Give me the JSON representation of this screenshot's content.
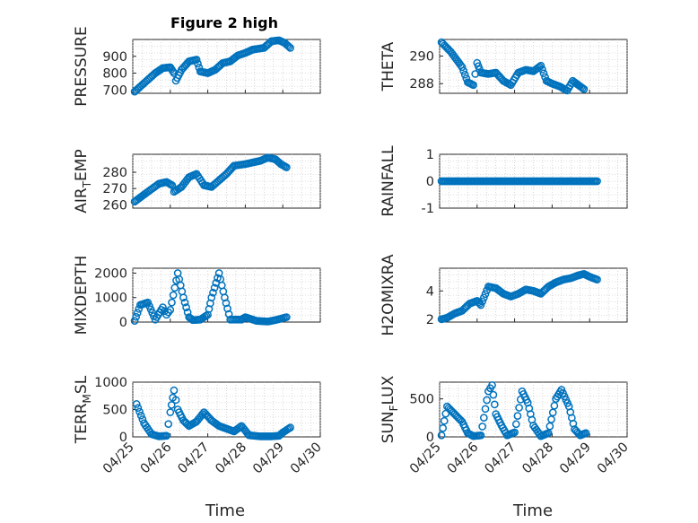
{
  "figure": {
    "title": "Figure 2 high",
    "marker_color": "#0072BD",
    "x_tick_labels": [
      "04/25",
      "04/26",
      "04/27",
      "04/28",
      "04/29",
      "04/30"
    ],
    "xlabel": "Time"
  },
  "chart_data": [
    {
      "type": "scatter",
      "name": "pressure",
      "title": "Figure 2 high",
      "ylabel_main": "PRESSURE",
      "ylabel_sub": "",
      "ylabel_rest": "",
      "ylim": [
        680,
        1000
      ],
      "yticks": [
        700,
        800,
        900
      ],
      "grid": true,
      "xlim_days": [
        0,
        5
      ],
      "xlabel": "",
      "x_ticks": [
        "04/25",
        "04/26",
        "04/27",
        "04/28",
        "04/29",
        "04/30"
      ],
      "anchors": [
        [
          0.05,
          690
        ],
        [
          0.4,
          760
        ],
        [
          0.6,
          800
        ],
        [
          0.8,
          830
        ],
        [
          1.0,
          835
        ],
        [
          1.1,
          800
        ],
        [
          1.15,
          755
        ],
        [
          1.3,
          820
        ],
        [
          1.5,
          870
        ],
        [
          1.7,
          880
        ],
        [
          1.8,
          810
        ],
        [
          2.0,
          800
        ],
        [
          2.2,
          820
        ],
        [
          2.4,
          860
        ],
        [
          2.6,
          870
        ],
        [
          2.8,
          905
        ],
        [
          3.0,
          920
        ],
        [
          3.2,
          940
        ],
        [
          3.5,
          950
        ],
        [
          3.7,
          990
        ],
        [
          3.9,
          995
        ],
        [
          4.05,
          980
        ],
        [
          4.2,
          950
        ]
      ]
    },
    {
      "type": "scatter",
      "name": "theta",
      "ylabel_main": "THETA",
      "ylabel_sub": "",
      "ylabel_rest": "",
      "ylim": [
        287.3,
        291.2
      ],
      "yticks": [
        288,
        290
      ],
      "grid": true,
      "xlim_days": [
        0,
        5
      ],
      "xlabel": "",
      "x_ticks": [
        "04/25",
        "04/26",
        "04/27",
        "04/28",
        "04/29",
        "04/30"
      ],
      "anchors": [
        [
          0.05,
          291
        ],
        [
          0.3,
          290.3
        ],
        [
          0.6,
          289.2
        ],
        [
          0.75,
          288.1
        ],
        [
          0.9,
          287.9
        ],
        [
          1.0,
          289.5
        ],
        [
          1.1,
          288.8
        ],
        [
          1.3,
          288.7
        ],
        [
          1.5,
          288.8
        ],
        [
          1.7,
          288.2
        ],
        [
          1.9,
          287.9
        ],
        [
          2.1,
          288.8
        ],
        [
          2.3,
          289.0
        ],
        [
          2.5,
          288.9
        ],
        [
          2.7,
          289.3
        ],
        [
          2.85,
          288.2
        ],
        [
          3.0,
          288.0
        ],
        [
          3.2,
          287.8
        ],
        [
          3.4,
          287.5
        ],
        [
          3.55,
          288.2
        ],
        [
          3.7,
          287.9
        ],
        [
          3.85,
          287.6
        ]
      ]
    },
    {
      "type": "scatter",
      "name": "air_temp",
      "ylabel_main": "AIR",
      "ylabel_sub": "T",
      "ylabel_rest": "EMP",
      "ylim": [
        258,
        291
      ],
      "yticks": [
        260,
        270,
        280
      ],
      "grid": true,
      "xlim_days": [
        0,
        5
      ],
      "xlabel": "",
      "x_ticks": [
        "04/25",
        "04/26",
        "04/27",
        "04/28",
        "04/29",
        "04/30"
      ],
      "anchors": [
        [
          0.05,
          262
        ],
        [
          0.4,
          268
        ],
        [
          0.7,
          273
        ],
        [
          0.9,
          274
        ],
        [
          1.05,
          272
        ],
        [
          1.1,
          268
        ],
        [
          1.3,
          271
        ],
        [
          1.5,
          277
        ],
        [
          1.7,
          279
        ],
        [
          1.9,
          272
        ],
        [
          2.1,
          271
        ],
        [
          2.3,
          275
        ],
        [
          2.5,
          279
        ],
        [
          2.7,
          284
        ],
        [
          3.0,
          285
        ],
        [
          3.2,
          286
        ],
        [
          3.4,
          287
        ],
        [
          3.6,
          289
        ],
        [
          3.8,
          288
        ],
        [
          3.95,
          285
        ],
        [
          4.1,
          283
        ]
      ]
    },
    {
      "type": "scatter",
      "name": "rainfall",
      "ylabel_main": "RAINFALL",
      "ylabel_sub": "",
      "ylabel_rest": "",
      "ylim": [
        -1,
        1
      ],
      "yticks": [
        -1,
        0,
        1
      ],
      "grid": true,
      "xlim_days": [
        0,
        5
      ],
      "xlabel": "",
      "x_ticks": [
        "04/25",
        "04/26",
        "04/27",
        "04/28",
        "04/29",
        "04/30"
      ],
      "anchors": [
        [
          0.05,
          0
        ],
        [
          4.2,
          0
        ]
      ]
    },
    {
      "type": "scatter",
      "name": "mixdepth",
      "ylabel_main": "MIXDEPTH",
      "ylabel_sub": "",
      "ylabel_rest": "",
      "ylim": [
        0,
        2200
      ],
      "yticks": [
        0,
        1000,
        2000
      ],
      "grid": true,
      "xlim_days": [
        0,
        5
      ],
      "xlabel": "",
      "x_ticks": [
        "04/25",
        "04/26",
        "04/27",
        "04/28",
        "04/29",
        "04/30"
      ],
      "anchors": [
        [
          0.05,
          50
        ],
        [
          0.2,
          700
        ],
        [
          0.4,
          800
        ],
        [
          0.6,
          100
        ],
        [
          0.8,
          600
        ],
        [
          0.9,
          300
        ],
        [
          1.0,
          500
        ],
        [
          1.2,
          2000
        ],
        [
          1.35,
          1000
        ],
        [
          1.5,
          200
        ],
        [
          1.6,
          80
        ],
        [
          1.8,
          100
        ],
        [
          2.0,
          300
        ],
        [
          2.1,
          1000
        ],
        [
          2.3,
          2000
        ],
        [
          2.45,
          1000
        ],
        [
          2.6,
          100
        ],
        [
          2.9,
          100
        ],
        [
          3.0,
          200
        ],
        [
          3.3,
          50
        ],
        [
          3.6,
          20
        ],
        [
          3.8,
          80
        ],
        [
          4.1,
          200
        ]
      ]
    },
    {
      "type": "scatter",
      "name": "h2omixra",
      "ylabel_main": "H2OMIXRA",
      "ylabel_sub": "",
      "ylabel_rest": "",
      "ylim": [
        1.8,
        5.6
      ],
      "yticks": [
        2,
        4
      ],
      "grid": true,
      "xlim_days": [
        0,
        5
      ],
      "xlabel": "",
      "x_ticks": [
        "04/25",
        "04/26",
        "04/27",
        "04/28",
        "04/29",
        "04/30"
      ],
      "anchors": [
        [
          0.05,
          2
        ],
        [
          0.2,
          2.1
        ],
        [
          0.4,
          2.4
        ],
        [
          0.6,
          2.6
        ],
        [
          0.8,
          3.1
        ],
        [
          1.0,
          3.3
        ],
        [
          1.1,
          3.0
        ],
        [
          1.3,
          4.3
        ],
        [
          1.5,
          4.2
        ],
        [
          1.7,
          3.8
        ],
        [
          1.9,
          3.6
        ],
        [
          2.1,
          3.8
        ],
        [
          2.3,
          4.1
        ],
        [
          2.5,
          4.0
        ],
        [
          2.7,
          3.8
        ],
        [
          2.9,
          4.3
        ],
        [
          3.1,
          4.6
        ],
        [
          3.3,
          4.8
        ],
        [
          3.5,
          4.9
        ],
        [
          3.7,
          5.1
        ],
        [
          3.85,
          5.2
        ],
        [
          4.0,
          5.0
        ],
        [
          4.2,
          4.8
        ]
      ]
    },
    {
      "type": "scatter",
      "name": "terr_msl",
      "ylabel_main": "TERR",
      "ylabel_sub": "M",
      "ylabel_rest": "SL",
      "ylim": [
        0,
        1000
      ],
      "yticks": [
        0,
        500,
        1000
      ],
      "grid": true,
      "xlim_days": [
        0,
        5
      ],
      "xlabel": "Time",
      "x_ticks": [
        "04/25",
        "04/26",
        "04/27",
        "04/28",
        "04/29",
        "04/30"
      ],
      "anchors": [
        [
          0.1,
          600
        ],
        [
          0.3,
          250
        ],
        [
          0.5,
          50
        ],
        [
          0.7,
          10
        ],
        [
          0.9,
          20
        ],
        [
          1.0,
          450
        ],
        [
          1.1,
          850
        ],
        [
          1.2,
          500
        ],
        [
          1.35,
          300
        ],
        [
          1.5,
          200
        ],
        [
          1.7,
          280
        ],
        [
          1.9,
          450
        ],
        [
          2.1,
          300
        ],
        [
          2.3,
          200
        ],
        [
          2.5,
          150
        ],
        [
          2.7,
          100
        ],
        [
          2.9,
          200
        ],
        [
          3.1,
          30
        ],
        [
          3.4,
          10
        ],
        [
          3.7,
          10
        ],
        [
          3.9,
          20
        ],
        [
          4.0,
          80
        ],
        [
          4.2,
          170
        ]
      ]
    },
    {
      "type": "scatter",
      "name": "sun_flux",
      "ylabel_main": "SUN",
      "ylabel_sub": "F",
      "ylabel_rest": "LUX",
      "ylim": [
        0,
        720
      ],
      "yticks": [
        0,
        500
      ],
      "grid": true,
      "xlim_days": [
        0,
        5
      ],
      "xlabel": "Time",
      "x_ticks": [
        "04/25",
        "04/26",
        "04/27",
        "04/28",
        "04/29",
        "04/30"
      ],
      "anchors": [
        [
          0.05,
          20
        ],
        [
          0.2,
          400
        ],
        [
          0.4,
          300
        ],
        [
          0.6,
          200
        ],
        [
          0.75,
          50
        ],
        [
          0.9,
          10
        ],
        [
          1.1,
          20
        ],
        [
          1.3,
          600
        ],
        [
          1.4,
          680
        ],
        [
          1.5,
          300
        ],
        [
          1.65,
          150
        ],
        [
          1.8,
          20
        ],
        [
          2.0,
          60
        ],
        [
          2.2,
          600
        ],
        [
          2.35,
          450
        ],
        [
          2.5,
          150
        ],
        [
          2.7,
          10
        ],
        [
          2.9,
          50
        ],
        [
          3.1,
          500
        ],
        [
          3.25,
          620
        ],
        [
          3.45,
          400
        ],
        [
          3.6,
          100
        ],
        [
          3.75,
          20
        ],
        [
          3.9,
          50
        ]
      ]
    }
  ]
}
